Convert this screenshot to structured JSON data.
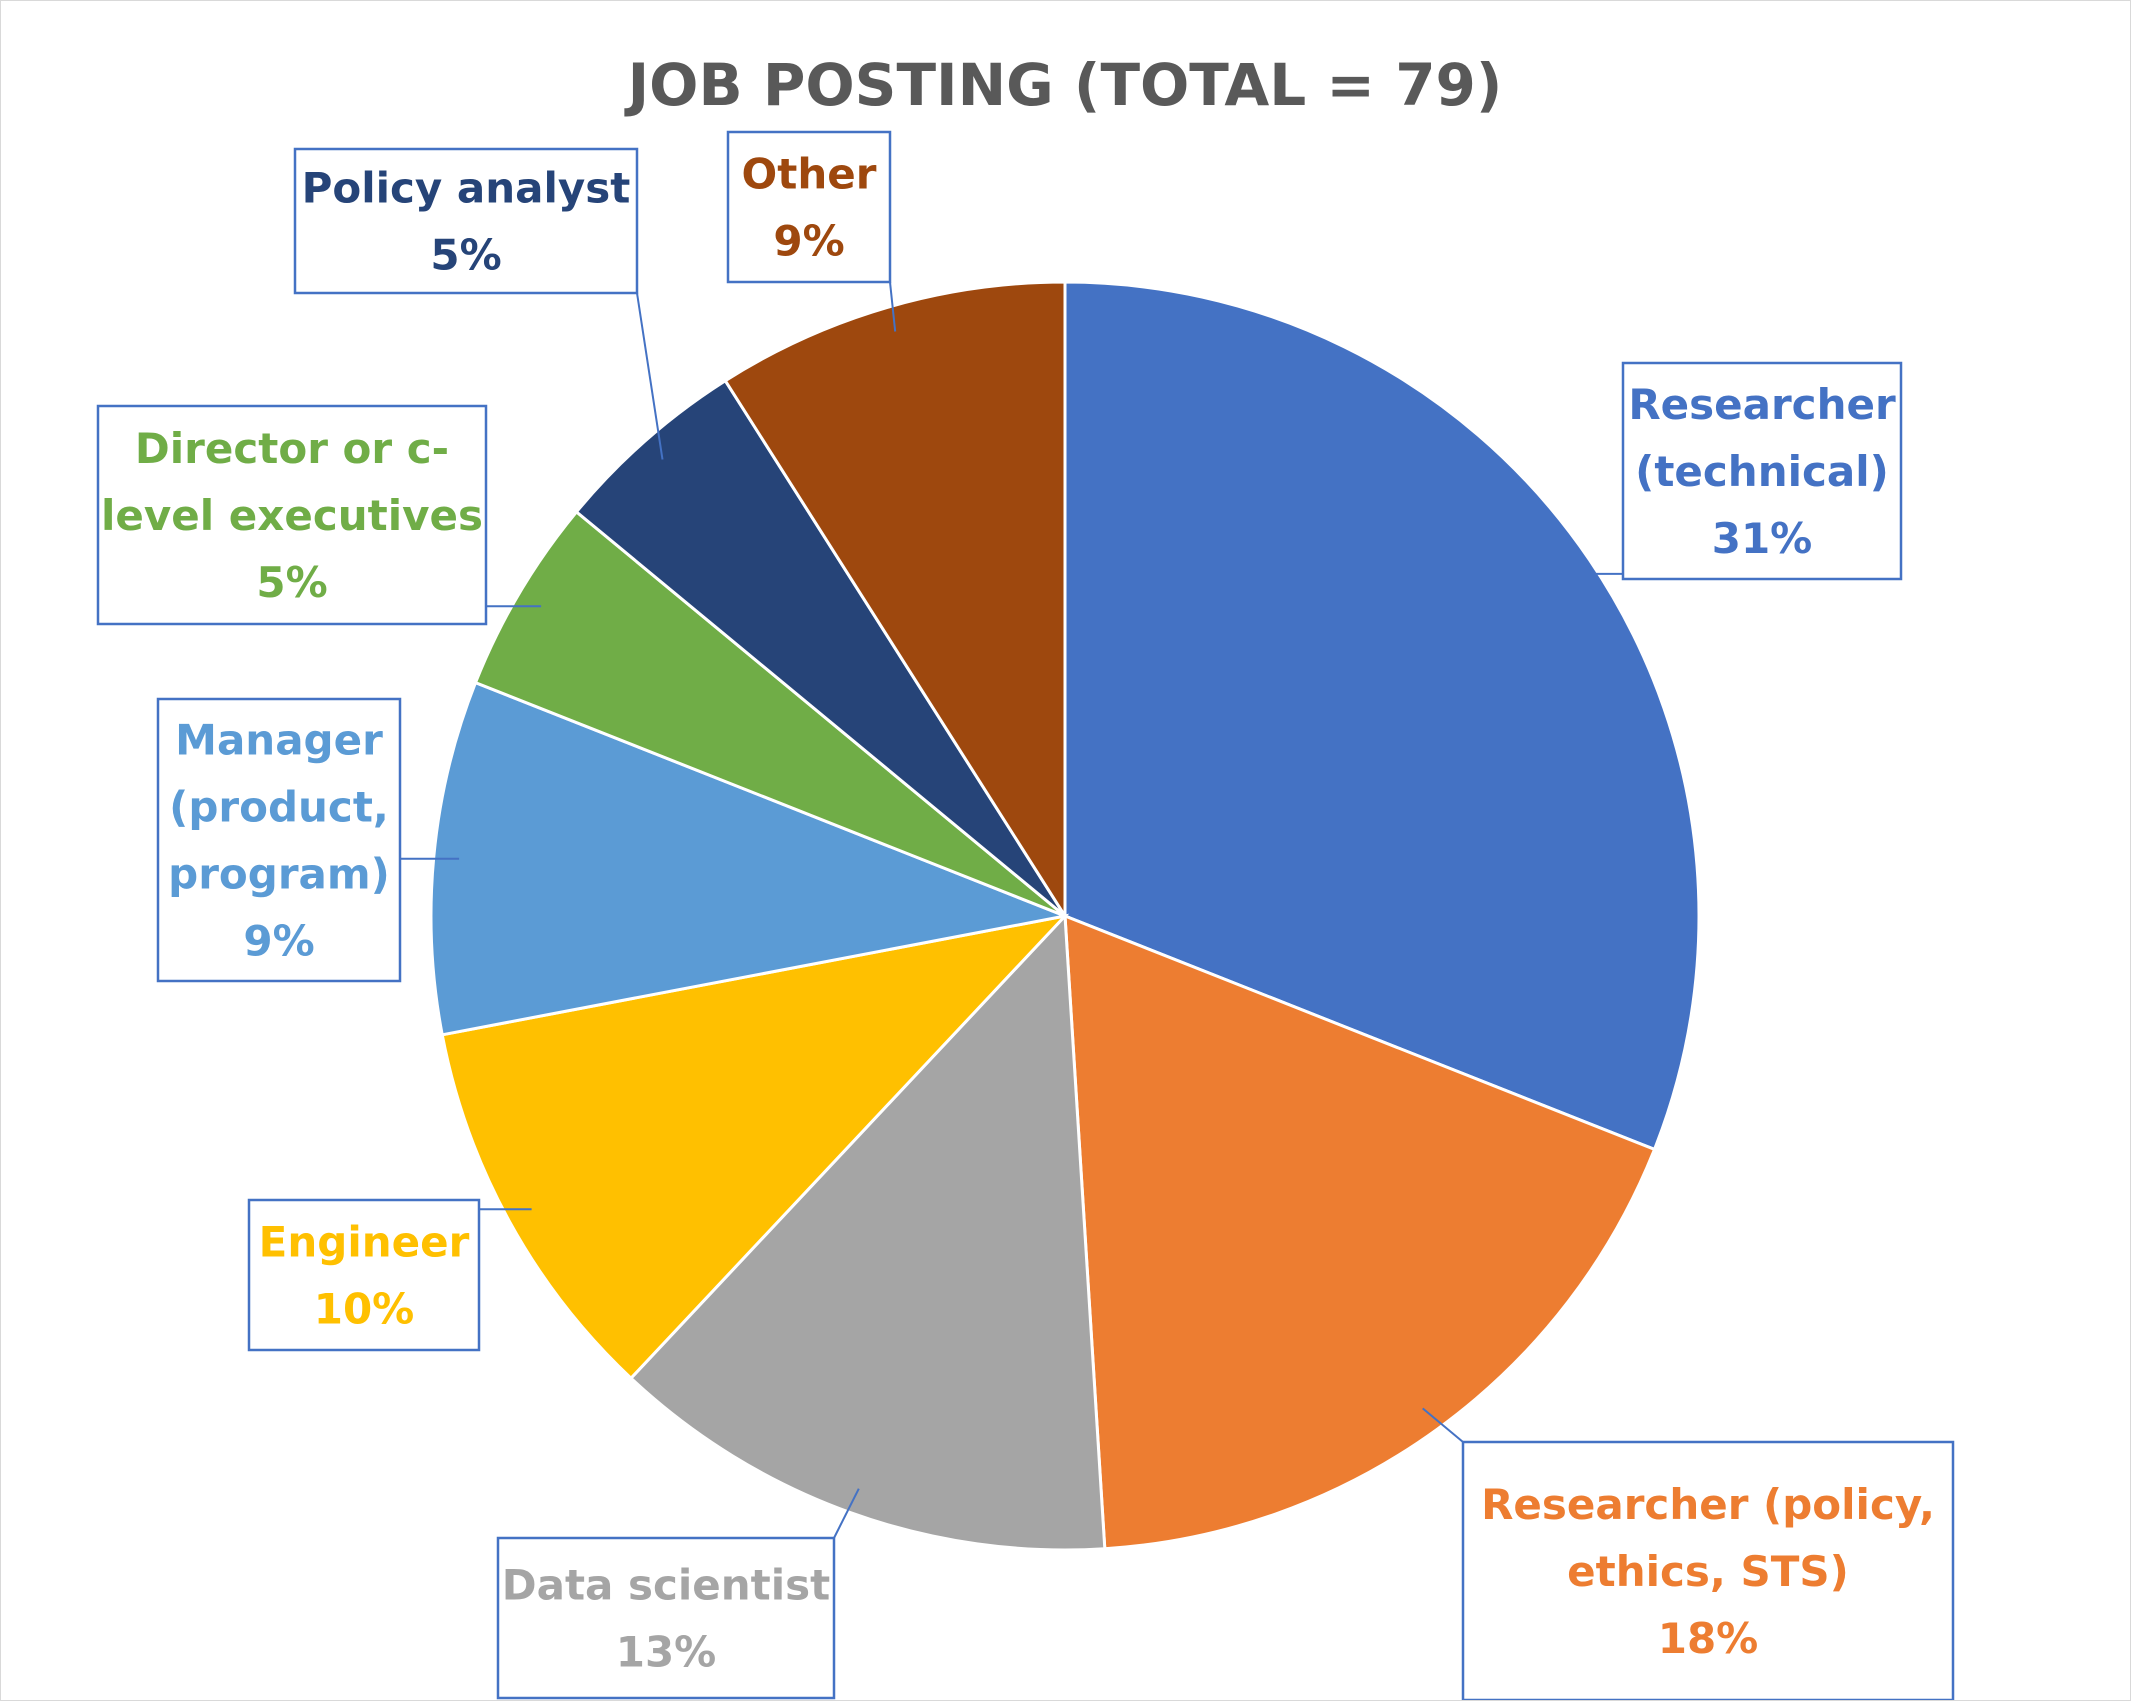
{
  "chart_data": {
    "type": "pie",
    "title": "JOB POSTING (TOTAL = 79)",
    "slices": [
      {
        "label_lines": [
          "Researcher",
          "(technical)"
        ],
        "percent_label": "31%",
        "value": 31,
        "color": "#4472c4"
      },
      {
        "label_lines": [
          "Researcher (policy,",
          "ethics, STS)"
        ],
        "percent_label": "18%",
        "value": 18,
        "color": "#ed7d31"
      },
      {
        "label_lines": [
          "Data scientist"
        ],
        "percent_label": "13%",
        "value": 13,
        "color": "#a5a5a5"
      },
      {
        "label_lines": [
          "Engineer"
        ],
        "percent_label": "10%",
        "value": 10,
        "color": "#ffc000"
      },
      {
        "label_lines": [
          "Manager",
          "(product,",
          "program)"
        ],
        "percent_label": "9%",
        "value": 9,
        "color": "#5b9bd5"
      },
      {
        "label_lines": [
          "Director or c-",
          "level executives"
        ],
        "percent_label": "5%",
        "value": 5,
        "color": "#70ad47"
      },
      {
        "label_lines": [
          "Policy analyst"
        ],
        "percent_label": "5%",
        "value": 5,
        "color": "#264478"
      },
      {
        "label_lines": [
          "Other"
        ],
        "percent_label": "9%",
        "value": 9,
        "color": "#9e480e"
      }
    ],
    "start_angle": "12 o'clock",
    "direction": "clockwise",
    "legend": "none",
    "data_labels": "callouts"
  }
}
